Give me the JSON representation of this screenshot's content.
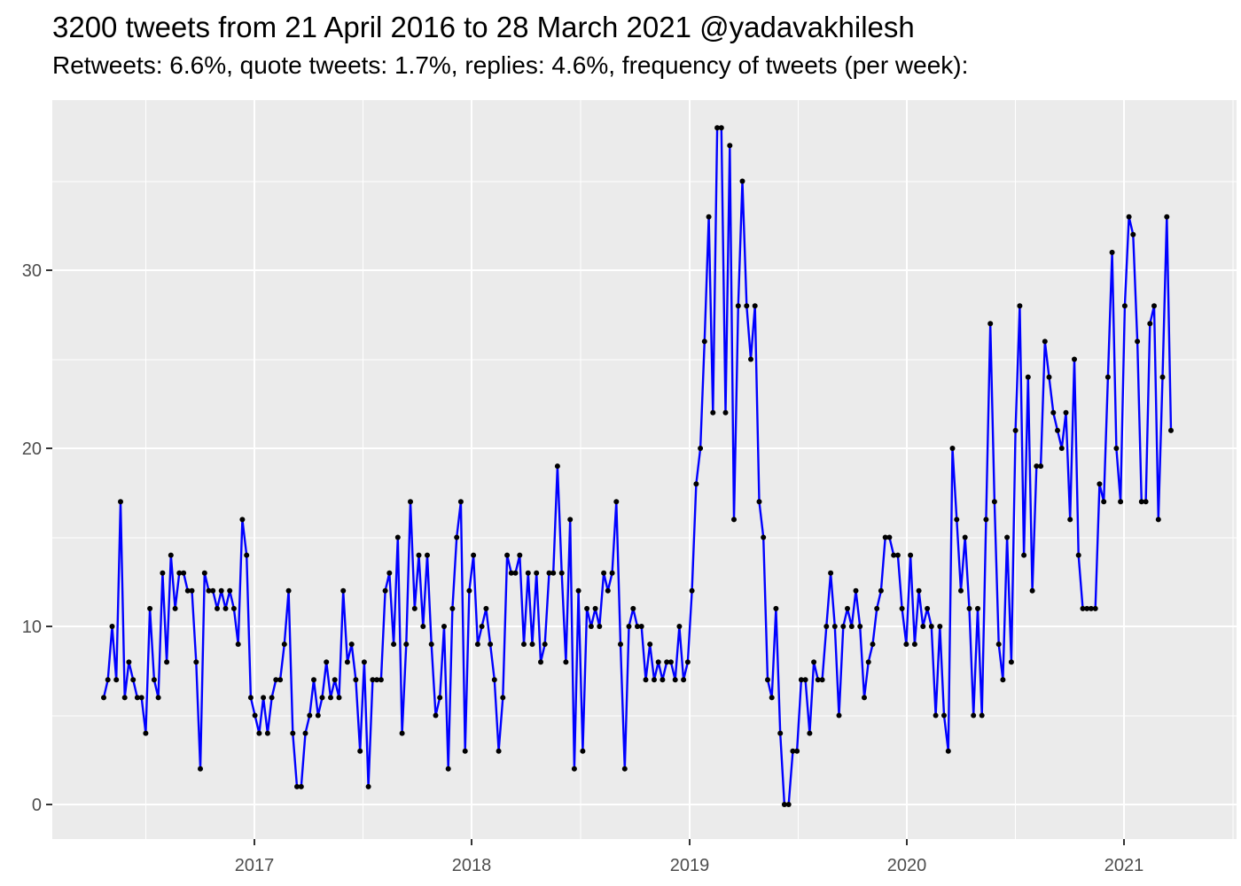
{
  "title": "3200 tweets from 21 April 2016 to 28 March 2021 @yadavakhilesh",
  "subtitle": "Retweets: 6.6%, quote tweets: 1.7%, replies: 4.6%, frequency of tweets (per week):",
  "chart_data": {
    "type": "line",
    "title": "3200 tweets from 21 April 2016 to 28 March 2021 @yadavakhilesh",
    "subtitle": "Retweets: 6.6%, quote tweets: 1.7%, replies: 4.6%, frequency of tweets (per week):",
    "series_name": "tweets-per-week",
    "x_start_date": "2016-04-24",
    "x_interval": "weekly",
    "xlabel": "",
    "ylabel": "",
    "x_tick_labels": [
      "2017",
      "2018",
      "2019",
      "2020",
      "2021"
    ],
    "y_tick_labels": [
      "0",
      "10",
      "20",
      "30"
    ],
    "y_tick_values": [
      0,
      10,
      20,
      30
    ],
    "ylim": [
      -1.8,
      39.5
    ],
    "grid": "on",
    "legend": "none",
    "panel_background": "#EBEBEB",
    "gridline_color": "#FFFFFF",
    "line_color": "#0000FF",
    "point_color": "#000000",
    "axis_text_color": "#4D4D4D",
    "values": [
      6,
      7,
      10,
      7,
      17,
      6,
      8,
      7,
      6,
      6,
      4,
      11,
      7,
      6,
      13,
      8,
      14,
      11,
      13,
      13,
      12,
      12,
      8,
      2,
      13,
      12,
      12,
      11,
      12,
      11,
      12,
      11,
      9,
      16,
      14,
      6,
      5,
      4,
      6,
      4,
      6,
      7,
      7,
      9,
      12,
      4,
      1,
      1,
      4,
      5,
      7,
      5,
      6,
      8,
      6,
      7,
      6,
      12,
      8,
      9,
      7,
      3,
      8,
      1,
      7,
      7,
      7,
      12,
      13,
      9,
      15,
      4,
      9,
      17,
      11,
      14,
      10,
      14,
      9,
      5,
      6,
      10,
      2,
      11,
      15,
      17,
      3,
      12,
      14,
      9,
      10,
      11,
      9,
      7,
      3,
      6,
      14,
      13,
      13,
      14,
      9,
      13,
      9,
      13,
      8,
      9,
      13,
      13,
      19,
      13,
      8,
      16,
      2,
      12,
      3,
      11,
      10,
      11,
      10,
      13,
      12,
      13,
      17,
      9,
      2,
      10,
      11,
      10,
      10,
      7,
      9,
      7,
      8,
      7,
      8,
      8,
      7,
      10,
      7,
      8,
      12,
      18,
      20,
      26,
      33,
      22,
      38,
      38,
      22,
      37,
      16,
      28,
      35,
      28,
      25,
      28,
      17,
      15,
      7,
      6,
      11,
      4,
      0,
      0,
      3,
      3,
      7,
      7,
      4,
      8,
      7,
      7,
      10,
      13,
      10,
      5,
      10,
      11,
      10,
      12,
      10,
      6,
      8,
      9,
      11,
      12,
      15,
      15,
      14,
      14,
      11,
      9,
      14,
      9,
      12,
      10,
      11,
      10,
      5,
      10,
      5,
      3,
      20,
      16,
      12,
      15,
      11,
      5,
      11,
      5,
      16,
      27,
      17,
      9,
      7,
      15,
      8,
      21,
      28,
      14,
      24,
      12,
      19,
      19,
      26,
      24,
      22,
      21,
      20,
      22,
      16,
      25,
      14,
      11,
      11,
      11,
      11,
      18,
      17,
      24,
      31,
      20,
      17,
      28,
      33,
      32,
      26,
      17,
      17,
      27,
      28,
      16,
      24,
      33,
      21
    ]
  }
}
